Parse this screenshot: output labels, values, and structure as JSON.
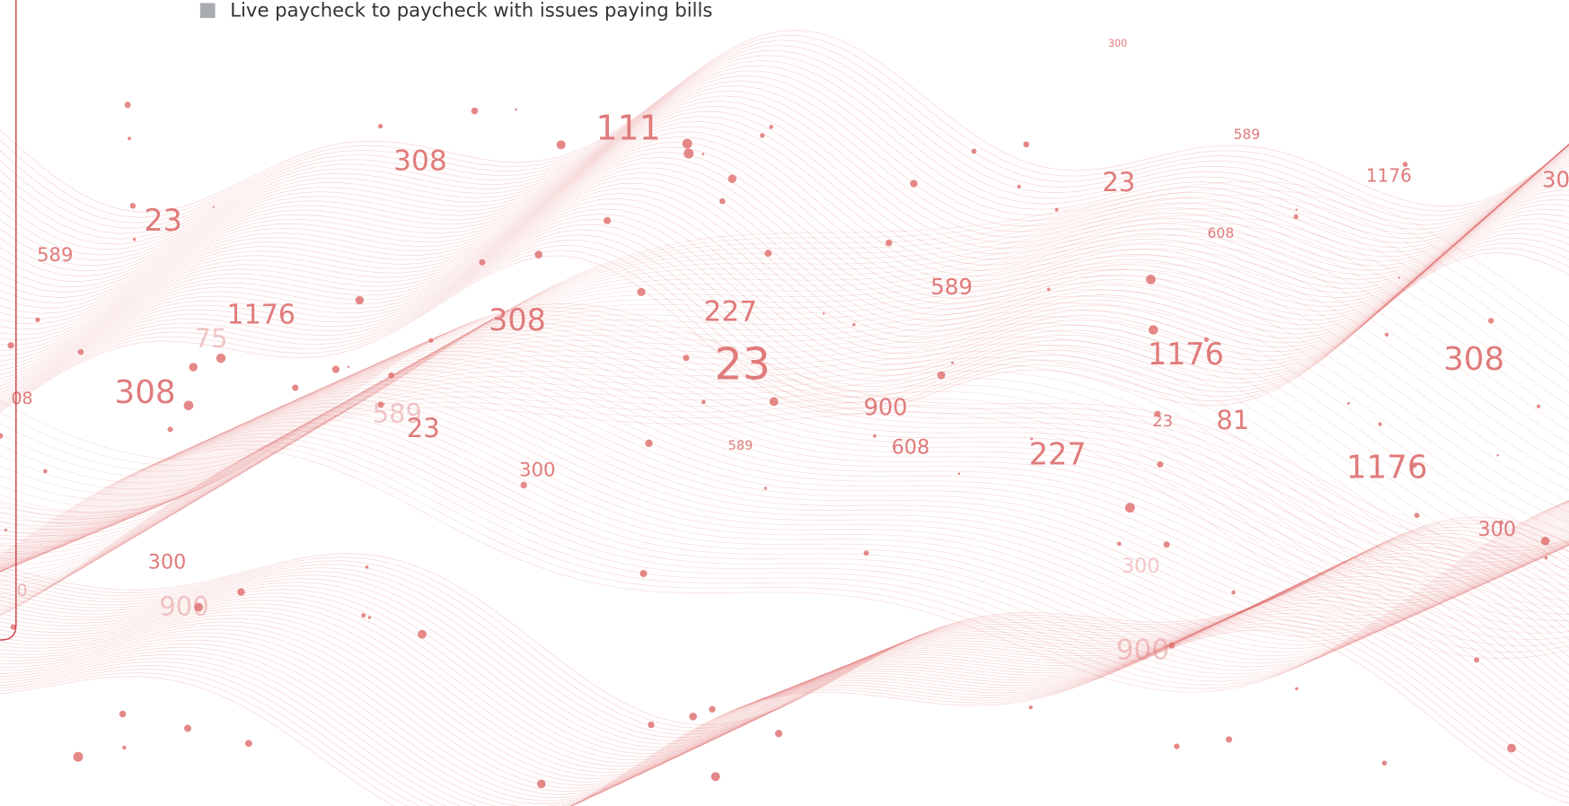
{
  "legend": {
    "label": "Live paycheck to paycheck with issues paying bills"
  },
  "labels": [
    "111",
    "308",
    "23",
    "589",
    "1176",
    "75",
    "308",
    "227",
    "23",
    "308",
    "08",
    "589",
    "23",
    "300",
    "589",
    "900",
    "608",
    "589",
    "227",
    "300",
    "900",
    "0",
    "300",
    "589",
    "23",
    "1176",
    "608",
    "30",
    "1176",
    "308",
    "23",
    "81",
    "1176",
    "300",
    "300",
    "900"
  ]
}
